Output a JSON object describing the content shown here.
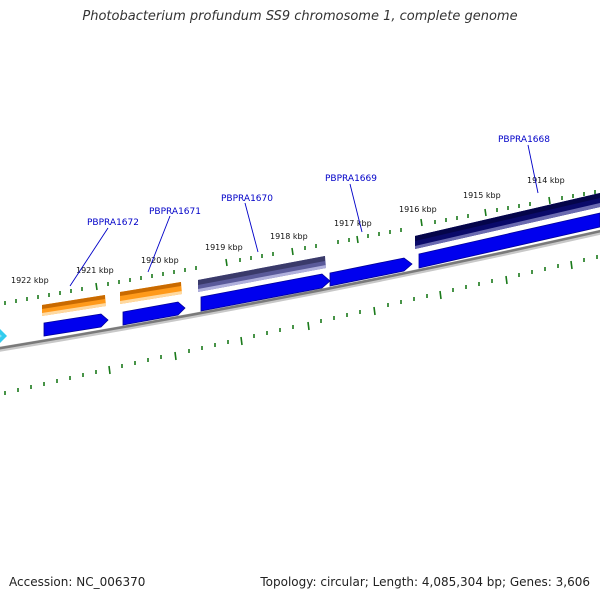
{
  "title": "Photobacterium profundum SS9 chromosome 1, complete genome",
  "accession_text": "Accession: NC_006370",
  "summary_text": "Topology: circular; Length: 4,085,304 bp; Genes: 3,606",
  "kbp_labels": [
    "1922 kbp",
    "1921 kbp",
    "1920 kbp",
    "1919 kbp",
    "1918 kbp",
    "1917 kbp",
    "1916 kbp",
    "1915 kbp",
    "1914 kbp"
  ],
  "gene_labels": [
    "PBPRA1672",
    "PBPRA1671",
    "PBPRA1670",
    "PBPRA1669",
    "PBPRA1668"
  ],
  "colors": {
    "backbone": "#8a8a8a",
    "tick": "#1a7a1a",
    "cds_forward": "#0000ee",
    "gene_orange": "#ff9a1a",
    "gene_slate": "#4a4a8a",
    "gene_navy": "#0a0a6a",
    "label_blue": "#0000c8",
    "cursor_cyan": "#33ccee"
  }
}
